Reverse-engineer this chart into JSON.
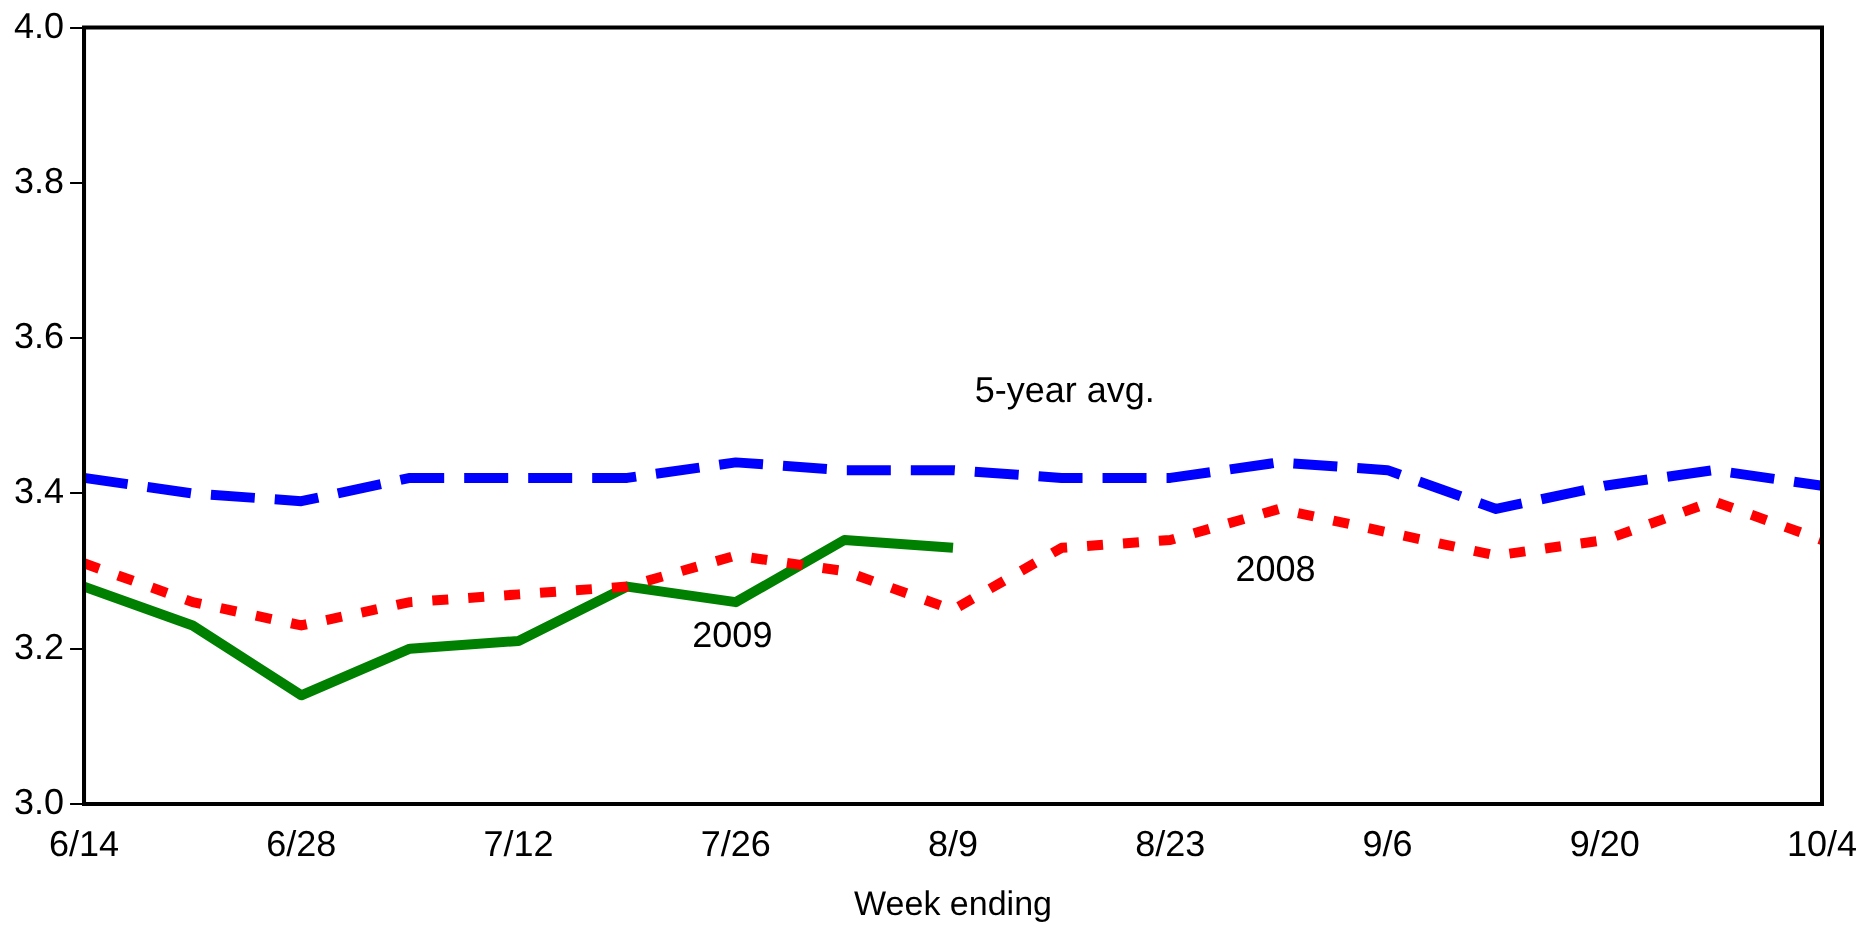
{
  "chart_data": {
    "type": "line",
    "xlabel": "Week ending",
    "categories": [
      "6/14",
      null,
      "6/28",
      null,
      "7/12",
      null,
      "7/26",
      null,
      "8/9",
      null,
      "8/23",
      null,
      "9/6",
      null,
      "9/20",
      null,
      "10/4"
    ],
    "series": [
      {
        "name": "5-year avg.",
        "color": "#0000ff",
        "line_style": "dashed",
        "values": [
          3.42,
          3.4,
          3.39,
          3.42,
          3.42,
          3.42,
          3.44,
          3.43,
          3.43,
          3.42,
          3.42,
          3.44,
          3.43,
          3.38,
          3.41,
          3.43,
          3.41
        ]
      },
      {
        "name": "2008",
        "color": "#ff0000",
        "line_style": "dotted",
        "values": [
          3.31,
          3.26,
          3.23,
          3.26,
          3.27,
          3.28,
          3.32,
          3.3,
          3.25,
          3.33,
          3.34,
          3.38,
          3.35,
          3.32,
          3.34,
          3.39,
          3.34
        ]
      },
      {
        "name": "2009",
        "color": "#008000",
        "line_style": "solid",
        "values": [
          3.28,
          3.23,
          3.14,
          3.2,
          3.21,
          3.28,
          3.26,
          3.34,
          3.33,
          null,
          null,
          null,
          null,
          null,
          null,
          null,
          null
        ]
      }
    ],
    "ylim": [
      3.0,
      4.0
    ],
    "yticks": [
      {
        "value": 3.0,
        "label": "3.0"
      },
      3.2,
      3.4,
      3.6,
      3.8,
      {
        "value": 4.0,
        "label": "4.0"
      }
    ],
    "grid": false,
    "legend": false,
    "marker": "none"
  }
}
